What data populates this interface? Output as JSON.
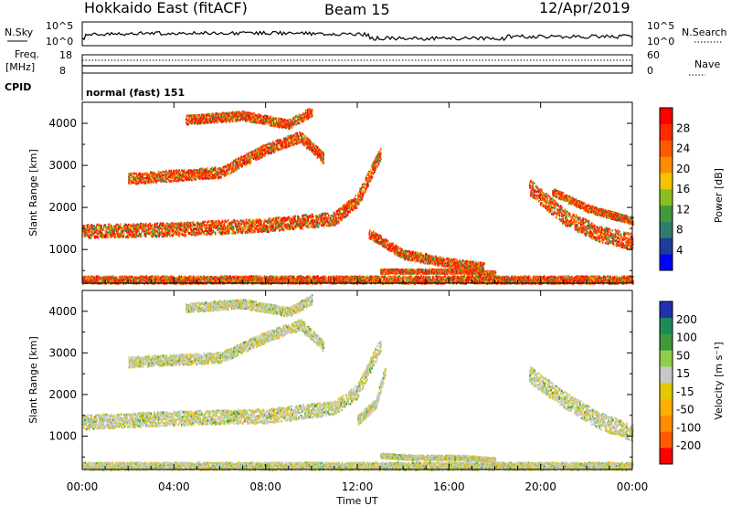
{
  "header": {
    "station": "Hokkaido East (fitACF)",
    "beam": "Beam 15",
    "date": "12/Apr/2019"
  },
  "top_panels": {
    "nsky_label": "N.Sky",
    "nsky_ticks": [
      "10^5",
      "10^0"
    ],
    "nsearch_label": "N.Search",
    "freq_label": "Freq.",
    "freq_unit": "[MHz]",
    "freq_ticks": [
      "18",
      "8"
    ],
    "nave_label": "Nave",
    "nave_ticks": [
      "60",
      "0"
    ],
    "cpid_label": "CPID",
    "cpid_text": "normal (fast) 151"
  },
  "colors": {
    "power_scale": [
      "#0000ff",
      "#1e3c9b",
      "#2e7d6e",
      "#3f9a3c",
      "#8cbf1e",
      "#f5c400",
      "#ff8c00",
      "#ff5a00",
      "#ff2a00",
      "#ff0000"
    ],
    "velocity_scale": [
      "#ff0000",
      "#ff5a00",
      "#ff8c00",
      "#ffb000",
      "#e6c800",
      "#c8c8c8",
      "#8fd04a",
      "#3f9a3c",
      "#1e8a5a",
      "#2030b0"
    ]
  },
  "chart_data": [
    {
      "type": "heatmap",
      "name": "power",
      "ylabel": "Slant Range [km]",
      "yticks": [
        1000,
        2000,
        3000,
        4000
      ],
      "ylim": [
        200,
        4500
      ],
      "xlim": [
        0,
        24
      ],
      "colorbar_label": "Power [dB]",
      "colorbar_ticks": [
        "4",
        "8",
        "12",
        "16",
        "20",
        "24",
        "28"
      ],
      "bands": [
        {
          "x": [
            0,
            4,
            8,
            11,
            12,
            13
          ],
          "y": [
            1450,
            1500,
            1600,
            1750,
            2200,
            3300
          ],
          "w": 160
        },
        {
          "x": [
            2,
            6,
            8,
            9.5,
            10.5
          ],
          "y": [
            2700,
            2850,
            3400,
            3700,
            3200
          ],
          "w": 130
        },
        {
          "x": [
            4.5,
            7,
            9,
            10
          ],
          "y": [
            4100,
            4200,
            4000,
            4300
          ],
          "w": 110
        },
        {
          "x": [
            12.5,
            14,
            16,
            17.5
          ],
          "y": [
            1400,
            900,
            700,
            600
          ],
          "w": 110
        },
        {
          "x": [
            13,
            14.5,
            16.5,
            18
          ],
          "y": [
            500,
            500,
            500,
            450
          ],
          "w": 55
        },
        {
          "x": [
            19.5,
            21,
            22.5,
            24
          ],
          "y": [
            2500,
            1800,
            1400,
            1200
          ],
          "w": 190
        },
        {
          "x": [
            20.5,
            22,
            24
          ],
          "y": [
            2400,
            2000,
            1700
          ],
          "w": 90
        },
        {
          "x": [
            0,
            24
          ],
          "y": [
            300,
            300
          ],
          "w": 90
        }
      ]
    },
    {
      "type": "heatmap",
      "name": "velocity",
      "ylabel": "Slant Range [km]",
      "yticks": [
        1000,
        2000,
        3000,
        4000
      ],
      "ylim": [
        200,
        4500
      ],
      "xlim": [
        0,
        24
      ],
      "xlabel": "Time UT",
      "xticks": [
        "00:00",
        "04:00",
        "08:00",
        "12:00",
        "16:00",
        "20:00",
        "00:00"
      ],
      "colorbar_label": "Velocity [m s⁻¹]",
      "colorbar_ticks": [
        "-200",
        "-100",
        "-50",
        "-15",
        "15",
        "50",
        "100",
        "200"
      ],
      "bands": [
        {
          "x": [
            0,
            4,
            8,
            11,
            12,
            13
          ],
          "y": [
            1350,
            1450,
            1500,
            1700,
            2100,
            3200
          ],
          "w": 170
        },
        {
          "x": [
            2,
            6,
            8,
            9.5,
            10.5
          ],
          "y": [
            2800,
            2900,
            3400,
            3700,
            3200
          ],
          "w": 130
        },
        {
          "x": [
            4.5,
            7,
            9,
            10
          ],
          "y": [
            4100,
            4200,
            4000,
            4300
          ],
          "w": 110
        },
        {
          "x": [
            12,
            12.8,
            13.2
          ],
          "y": [
            1400,
            1800,
            2600
          ],
          "w": 120
        },
        {
          "x": [
            13,
            14.5,
            16.5,
            18
          ],
          "y": [
            550,
            500,
            500,
            450
          ],
          "w": 60
        },
        {
          "x": [
            19.5,
            21,
            22.5,
            24
          ],
          "y": [
            2500,
            1900,
            1400,
            1100
          ],
          "w": 200
        },
        {
          "x": [
            0,
            24
          ],
          "y": [
            300,
            300
          ],
          "w": 90
        }
      ]
    }
  ]
}
